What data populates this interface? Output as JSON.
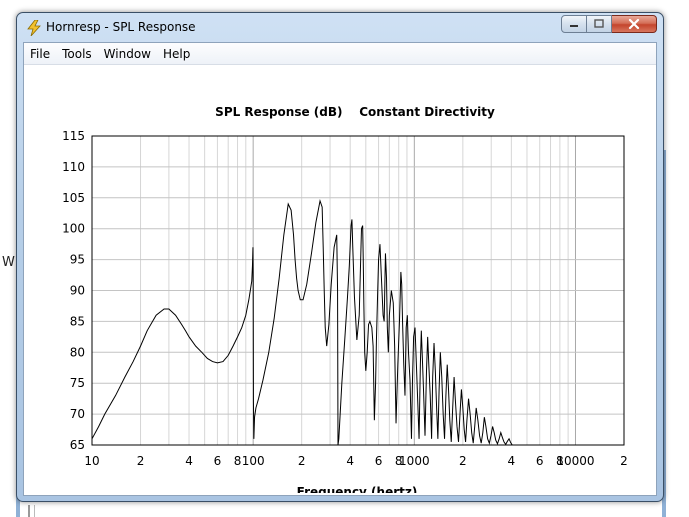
{
  "window": {
    "title": "Hornresp - SPL Response",
    "app_icon": "lightning-icon",
    "controls": [
      "minimize-icon",
      "maximize-icon",
      "close-icon"
    ]
  },
  "background": {
    "fragment_text": "W"
  },
  "menu": [
    {
      "label": "File"
    },
    {
      "label": "Tools"
    },
    {
      "label": "Window"
    },
    {
      "label": "Help"
    }
  ],
  "chart_data": {
    "type": "line",
    "title": "SPL Response (dB)    Constant Directivity",
    "xlabel": "Frequency (hertz)",
    "ylabel": "",
    "x_scale": "log",
    "xlim": [
      10,
      20000
    ],
    "ylim": [
      65,
      115
    ],
    "y_ticks": [
      65,
      70,
      75,
      80,
      85,
      90,
      95,
      100,
      105,
      110,
      115
    ],
    "y_tick_labels": [
      "65",
      "70",
      "75",
      "80",
      "85",
      "90",
      "95",
      "100",
      "105",
      "110",
      "115"
    ],
    "x_ticks": [
      10,
      20,
      40,
      60,
      80,
      100,
      200,
      400,
      600,
      800,
      1000,
      2000,
      4000,
      6000,
      8000,
      10000,
      20000
    ],
    "x_tick_labels": [
      "10",
      "2",
      "4",
      "6",
      "8",
      "100",
      "2",
      "4",
      "6",
      "8",
      "1000",
      "2",
      "4",
      "6",
      "8",
      "10000",
      "2"
    ],
    "grid": true,
    "series": [
      {
        "name": "",
        "color": "#000000",
        "x": [
          10,
          11,
          12,
          14,
          16,
          18,
          20,
          22,
          25,
          28,
          30,
          33,
          36,
          38,
          40,
          44,
          48,
          52,
          56,
          60,
          65,
          70,
          75,
          80,
          85,
          90,
          94,
          96,
          98,
          99,
          99.7,
          100,
          100.4,
          101,
          102,
          104,
          108,
          115,
          125,
          135,
          145,
          155,
          165,
          172,
          178,
          182,
          186,
          190,
          196,
          204,
          215,
          230,
          245,
          260,
          268,
          272,
          276,
          280,
          286,
          295,
          305,
          318,
          330,
          334,
          336,
          340,
          355,
          370,
          385,
          395,
          405,
          410,
          415,
          425,
          440,
          455,
          470,
          478,
          482,
          486,
          492,
          500,
          510,
          520,
          530,
          545,
          555,
          565,
          575,
          582,
          590,
          600,
          612,
          625,
          640,
          650,
          662,
          672,
          680,
          690,
          700,
          720,
          740,
          755,
          770,
          790,
          810,
          825,
          835,
          845,
          860,
          875,
          890,
          905,
          920,
          940,
          960,
          975,
          990,
          1010,
          1030,
          1050,
          1070,
          1090,
          1105,
          1120,
          1140,
          1165,
          1190,
          1210,
          1230,
          1255,
          1280,
          1300,
          1325,
          1350,
          1375,
          1400,
          1425,
          1450,
          1480,
          1510,
          1540,
          1570,
          1600,
          1630,
          1660,
          1695,
          1730,
          1765,
          1800,
          1840,
          1880,
          1920,
          1960,
          2000,
          2040,
          2080,
          2120,
          2170,
          2220,
          2270,
          2320,
          2370,
          2420,
          2480,
          2540,
          2600,
          2660,
          2720,
          2780,
          2850,
          2920,
          2990,
          3060,
          3130,
          3200,
          3280,
          3360,
          3440,
          3520,
          3600,
          3690,
          3780,
          3870,
          3960,
          4050,
          4150,
          4250,
          20000
        ],
        "y": [
          66.0,
          68.0,
          70.0,
          73.0,
          76.0,
          78.5,
          81.0,
          83.5,
          86.0,
          87.0,
          87.0,
          86.0,
          84.5,
          83.5,
          82.5,
          81.0,
          80.0,
          79.0,
          78.5,
          78.3,
          78.5,
          79.5,
          81.0,
          82.5,
          84.0,
          86.0,
          88.5,
          90.0,
          91.5,
          94.0,
          97.0,
          93.0,
          72.0,
          66.0,
          69.5,
          71.0,
          72.5,
          75.5,
          80.0,
          85.5,
          92.0,
          99.0,
          104.0,
          103.0,
          99.0,
          95.0,
          92.0,
          90.0,
          88.5,
          88.5,
          91.0,
          96.0,
          101.0,
          104.5,
          103.5,
          97.0,
          90.0,
          84.0,
          81.0,
          84.5,
          91.0,
          97.0,
          99.0,
          90.0,
          65.0,
          66.0,
          75.0,
          82.0,
          89.0,
          94.0,
          100.5,
          101.5,
          97.0,
          89.0,
          82.0,
          86.0,
          100.0,
          100.5,
          95.0,
          88.0,
          80.0,
          77.0,
          80.0,
          84.5,
          85.0,
          84.0,
          81.0,
          69.0,
          75.0,
          82.0,
          88.0,
          95.0,
          97.5,
          92.0,
          86.0,
          85.0,
          96.0,
          92.0,
          84.0,
          80.0,
          86.0,
          90.0,
          88.0,
          81.0,
          68.5,
          78.0,
          85.5,
          93.0,
          91.0,
          85.0,
          78.0,
          73.0,
          84.0,
          86.0,
          80.0,
          75.5,
          66.0,
          76.0,
          82.5,
          84.0,
          78.0,
          72.0,
          66.0,
          78.0,
          83.5,
          79.5,
          74.0,
          66.5,
          77.0,
          82.5,
          78.0,
          73.0,
          66.0,
          76.0,
          81.5,
          77.0,
          71.0,
          66.0,
          74.0,
          80.0,
          76.0,
          70.0,
          66.0,
          73.0,
          78.0,
          74.0,
          69.0,
          65.5,
          71.0,
          76.0,
          72.0,
          68.0,
          65.5,
          70.0,
          74.0,
          71.0,
          67.5,
          65.5,
          69.0,
          72.5,
          70.0,
          67.0,
          65.3,
          68.0,
          71.0,
          69.0,
          66.5,
          65.3,
          67.0,
          69.5,
          68.0,
          66.0,
          65.3,
          66.5,
          68.0,
          67.0,
          65.8,
          65.2,
          66.0,
          67.0,
          66.2,
          65.5,
          65.1,
          65.6,
          66.0,
          65.4,
          65.0,
          65.0,
          65.0,
          65.0
        ]
      }
    ]
  }
}
